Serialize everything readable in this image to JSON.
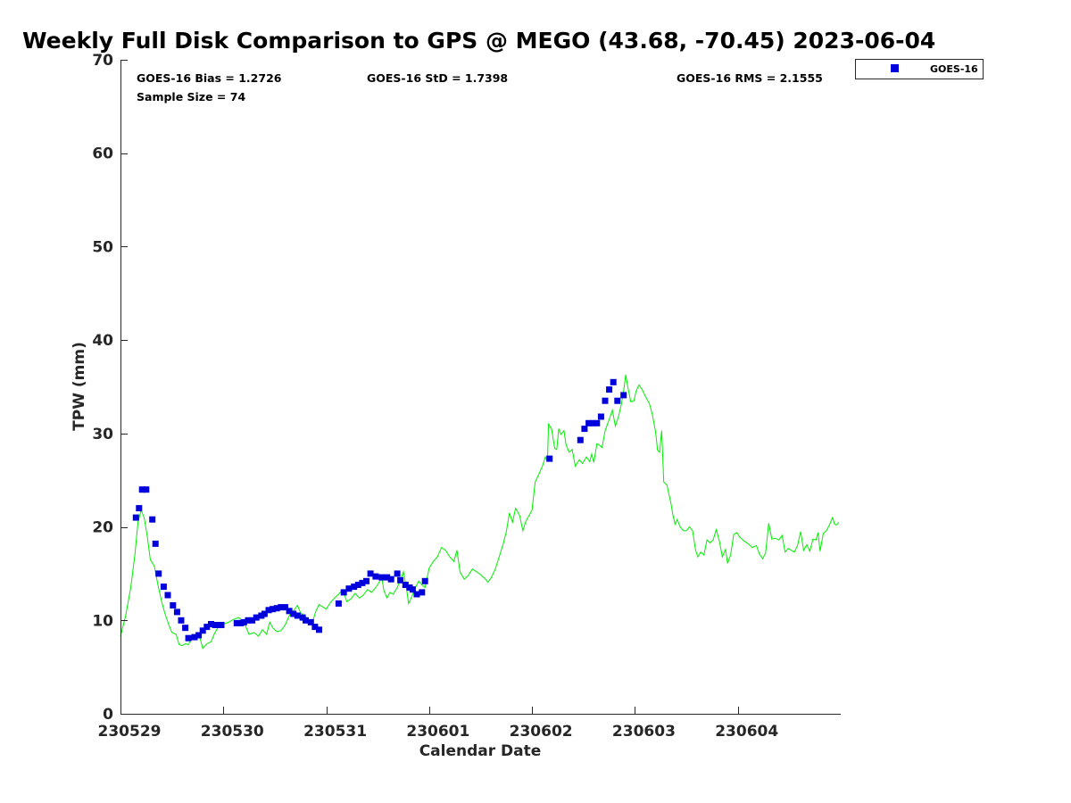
{
  "chart_data": {
    "type": "scatter",
    "title": "Weekly Full Disk Comparison to GPS @ MEGO (43.68, -70.45) 2023-06-04",
    "xlabel": "Calendar Date",
    "ylabel": "TPW (mm)",
    "xlim": [
      0,
      7
    ],
    "ylim": [
      0,
      70
    ],
    "yticks": [
      0,
      10,
      20,
      30,
      40,
      50,
      60,
      70
    ],
    "xticks": [
      {
        "x": 0,
        "label": "230529"
      },
      {
        "x": 1,
        "label": "230530"
      },
      {
        "x": 2,
        "label": "230531"
      },
      {
        "x": 3,
        "label": "230601"
      },
      {
        "x": 4,
        "label": "230602"
      },
      {
        "x": 5,
        "label": "230603"
      },
      {
        "x": 6,
        "label": "230604"
      }
    ],
    "x_units": "days since 230529 00Z",
    "grid": false,
    "legend_position": "top-right, outside plot",
    "stats": {
      "bias": "GOES-16 Bias = 1.2726",
      "std": "GOES-16 StD = 1.7398",
      "rms": "GOES-16 RMS = 2.1555",
      "sample_size": "Sample Size = 74"
    },
    "series": [
      {
        "name": "GOES-16",
        "style": "square-markers",
        "color": "#0000dd",
        "points": [
          [
            0.15,
            21.0
          ],
          [
            0.18,
            22.0
          ],
          [
            0.21,
            24.0
          ],
          [
            0.25,
            24.0
          ],
          [
            0.31,
            20.8
          ],
          [
            0.34,
            18.2
          ],
          [
            0.37,
            15.0
          ],
          [
            0.42,
            13.6
          ],
          [
            0.46,
            12.7
          ],
          [
            0.51,
            11.6
          ],
          [
            0.55,
            10.9
          ],
          [
            0.59,
            10.0
          ],
          [
            0.63,
            9.2
          ],
          [
            0.66,
            8.1
          ],
          [
            0.72,
            8.2
          ],
          [
            0.76,
            8.4
          ],
          [
            0.8,
            8.9
          ],
          [
            0.84,
            9.3
          ],
          [
            0.88,
            9.6
          ],
          [
            0.92,
            9.5
          ],
          [
            0.98,
            9.5
          ],
          [
            1.13,
            9.7
          ],
          [
            1.17,
            9.7
          ],
          [
            1.2,
            9.8
          ],
          [
            1.24,
            10.0
          ],
          [
            1.28,
            10.0
          ],
          [
            1.32,
            10.3
          ],
          [
            1.37,
            10.5
          ],
          [
            1.4,
            10.7
          ],
          [
            1.44,
            11.1
          ],
          [
            1.48,
            11.2
          ],
          [
            1.52,
            11.3
          ],
          [
            1.56,
            11.4
          ],
          [
            1.6,
            11.4
          ],
          [
            1.64,
            11.0
          ],
          [
            1.68,
            10.7
          ],
          [
            1.72,
            10.5
          ],
          [
            1.77,
            10.3
          ],
          [
            1.8,
            10.0
          ],
          [
            1.85,
            9.8
          ],
          [
            1.89,
            9.3
          ],
          [
            1.93,
            9.0
          ],
          [
            2.12,
            11.8
          ],
          [
            2.17,
            13.0
          ],
          [
            2.22,
            13.4
          ],
          [
            2.27,
            13.6
          ],
          [
            2.31,
            13.8
          ],
          [
            2.35,
            14.0
          ],
          [
            2.39,
            14.2
          ],
          [
            2.43,
            15.0
          ],
          [
            2.48,
            14.7
          ],
          [
            2.54,
            14.6
          ],
          [
            2.59,
            14.6
          ],
          [
            2.63,
            14.4
          ],
          [
            2.69,
            15.0
          ],
          [
            2.72,
            14.3
          ],
          [
            2.77,
            13.8
          ],
          [
            2.81,
            13.5
          ],
          [
            2.84,
            13.3
          ],
          [
            2.88,
            12.8
          ],
          [
            2.93,
            13.0
          ],
          [
            2.96,
            14.2
          ],
          [
            4.17,
            27.3
          ],
          [
            4.47,
            29.3
          ],
          [
            4.51,
            30.5
          ],
          [
            4.55,
            31.1
          ],
          [
            4.59,
            31.1
          ],
          [
            4.63,
            31.1
          ],
          [
            4.67,
            31.8
          ],
          [
            4.71,
            33.5
          ],
          [
            4.75,
            34.7
          ],
          [
            4.79,
            35.5
          ],
          [
            4.83,
            33.5
          ],
          [
            4.89,
            34.1
          ]
        ]
      },
      {
        "name": "",
        "style": "line",
        "color": "#00ee00",
        "points": [
          [
            0.0,
            8.3
          ],
          [
            0.05,
            10.5
          ],
          [
            0.1,
            13.5
          ],
          [
            0.14,
            17.0
          ],
          [
            0.17,
            20.5
          ],
          [
            0.2,
            21.8
          ],
          [
            0.23,
            21.0
          ],
          [
            0.26,
            19.0
          ],
          [
            0.29,
            16.5
          ],
          [
            0.33,
            15.8
          ],
          [
            0.36,
            14.0
          ],
          [
            0.4,
            12.0
          ],
          [
            0.43,
            10.8
          ],
          [
            0.47,
            9.5
          ],
          [
            0.5,
            8.7
          ],
          [
            0.54,
            8.5
          ],
          [
            0.57,
            7.4
          ],
          [
            0.6,
            7.3
          ],
          [
            0.63,
            7.5
          ],
          [
            0.66,
            7.4
          ],
          [
            0.7,
            8.2
          ],
          [
            0.74,
            8.5
          ],
          [
            0.77,
            8.2
          ],
          [
            0.8,
            7.0
          ],
          [
            0.84,
            7.5
          ],
          [
            0.88,
            7.7
          ],
          [
            0.91,
            8.5
          ],
          [
            0.95,
            9.3
          ],
          [
            1.0,
            9.6
          ],
          [
            1.05,
            9.8
          ],
          [
            1.1,
            10.1
          ],
          [
            1.15,
            10.3
          ],
          [
            1.2,
            9.8
          ],
          [
            1.25,
            8.5
          ],
          [
            1.3,
            8.7
          ],
          [
            1.34,
            8.3
          ],
          [
            1.38,
            9.0
          ],
          [
            1.42,
            8.5
          ],
          [
            1.45,
            9.8
          ],
          [
            1.48,
            9.2
          ],
          [
            1.52,
            8.8
          ],
          [
            1.56,
            8.9
          ],
          [
            1.6,
            9.5
          ],
          [
            1.64,
            10.5
          ],
          [
            1.68,
            11.0
          ],
          [
            1.72,
            11.6
          ],
          [
            1.75,
            10.8
          ],
          [
            1.79,
            10.5
          ],
          [
            1.83,
            10.0
          ],
          [
            1.86,
            9.6
          ],
          [
            1.9,
            11.0
          ],
          [
            1.93,
            11.7
          ],
          [
            1.97,
            11.4
          ],
          [
            2.0,
            11.2
          ],
          [
            2.04,
            11.9
          ],
          [
            2.08,
            12.4
          ],
          [
            2.12,
            12.8
          ],
          [
            2.16,
            13.3
          ],
          [
            2.2,
            12.0
          ],
          [
            2.24,
            12.3
          ],
          [
            2.28,
            12.9
          ],
          [
            2.32,
            12.4
          ],
          [
            2.36,
            12.7
          ],
          [
            2.4,
            13.3
          ],
          [
            2.44,
            13.0
          ],
          [
            2.48,
            13.5
          ],
          [
            2.51,
            14.0
          ],
          [
            2.54,
            14.6
          ],
          [
            2.56,
            13.2
          ],
          [
            2.59,
            12.4
          ],
          [
            2.62,
            13.0
          ],
          [
            2.65,
            12.8
          ],
          [
            2.69,
            13.5
          ],
          [
            2.72,
            14.3
          ],
          [
            2.75,
            15.2
          ],
          [
            2.78,
            13.4
          ],
          [
            2.8,
            11.8
          ],
          [
            2.83,
            12.5
          ],
          [
            2.87,
            13.6
          ],
          [
            2.9,
            14.2
          ],
          [
            2.93,
            13.8
          ],
          [
            2.96,
            13.5
          ],
          [
            3.0,
            15.6
          ],
          [
            3.04,
            16.3
          ],
          [
            3.08,
            16.8
          ],
          [
            3.12,
            17.8
          ],
          [
            3.16,
            17.5
          ],
          [
            3.2,
            16.8
          ],
          [
            3.24,
            16.3
          ],
          [
            3.27,
            17.5
          ],
          [
            3.3,
            15.2
          ],
          [
            3.34,
            14.4
          ],
          [
            3.38,
            14.8
          ],
          [
            3.42,
            15.5
          ],
          [
            3.46,
            15.2
          ],
          [
            3.5,
            14.9
          ],
          [
            3.54,
            14.5
          ],
          [
            3.57,
            14.1
          ],
          [
            3.6,
            14.5
          ],
          [
            3.64,
            15.4
          ],
          [
            3.68,
            16.8
          ],
          [
            3.72,
            18.2
          ],
          [
            3.75,
            19.5
          ],
          [
            3.78,
            21.5
          ],
          [
            3.81,
            20.5
          ],
          [
            3.84,
            22.0
          ],
          [
            3.88,
            21.2
          ],
          [
            3.91,
            19.6
          ],
          [
            3.94,
            20.6
          ],
          [
            3.97,
            21.2
          ],
          [
            4.0,
            21.8
          ],
          [
            4.03,
            24.8
          ],
          [
            4.06,
            25.5
          ],
          [
            4.1,
            26.5
          ],
          [
            4.13,
            27.5
          ],
          [
            4.15,
            27.0
          ],
          [
            4.16,
            31.0
          ],
          [
            4.19,
            30.5
          ],
          [
            4.22,
            28.4
          ],
          [
            4.24,
            28.3
          ],
          [
            4.26,
            30.5
          ],
          [
            4.28,
            29.9
          ],
          [
            4.31,
            30.3
          ],
          [
            4.33,
            28.8
          ],
          [
            4.36,
            28.0
          ],
          [
            4.39,
            28.3
          ],
          [
            4.42,
            26.5
          ],
          [
            4.46,
            27.2
          ],
          [
            4.49,
            26.8
          ],
          [
            4.53,
            27.5
          ],
          [
            4.56,
            27.0
          ],
          [
            4.58,
            27.8
          ],
          [
            4.6,
            26.9
          ],
          [
            4.63,
            28.9
          ],
          [
            4.65,
            28.8
          ],
          [
            4.68,
            28.5
          ],
          [
            4.71,
            30.3
          ],
          [
            4.75,
            31.5
          ],
          [
            4.78,
            32.5
          ],
          [
            4.81,
            30.8
          ],
          [
            4.84,
            31.8
          ],
          [
            4.87,
            33.2
          ],
          [
            4.89,
            34.5
          ],
          [
            4.91,
            36.3
          ],
          [
            4.93,
            35.0
          ],
          [
            4.96,
            33.4
          ],
          [
            4.99,
            33.5
          ],
          [
            5.01,
            34.5
          ],
          [
            5.04,
            35.2
          ],
          [
            5.07,
            34.7
          ],
          [
            5.1,
            34.0
          ],
          [
            5.14,
            33.2
          ],
          [
            5.17,
            32.0
          ],
          [
            5.2,
            30.2
          ],
          [
            5.22,
            28.2
          ],
          [
            5.24,
            28.0
          ],
          [
            5.26,
            30.3
          ],
          [
            5.28,
            24.8
          ],
          [
            5.31,
            24.5
          ],
          [
            5.33,
            23.5
          ],
          [
            5.35,
            22.5
          ],
          [
            5.37,
            21.2
          ],
          [
            5.39,
            20.3
          ],
          [
            5.41,
            20.8
          ],
          [
            5.44,
            20.0
          ],
          [
            5.47,
            19.6
          ],
          [
            5.5,
            19.6
          ],
          [
            5.53,
            20.0
          ],
          [
            5.56,
            19.6
          ],
          [
            5.59,
            17.5
          ],
          [
            5.61,
            16.8
          ],
          [
            5.64,
            17.3
          ],
          [
            5.67,
            17.0
          ],
          [
            5.7,
            18.6
          ],
          [
            5.73,
            18.3
          ],
          [
            5.76,
            18.6
          ],
          [
            5.79,
            19.7
          ],
          [
            5.82,
            18.5
          ],
          [
            5.85,
            16.8
          ],
          [
            5.88,
            17.6
          ],
          [
            5.9,
            16.1
          ],
          [
            5.93,
            17.0
          ],
          [
            5.96,
            19.2
          ],
          [
            5.99,
            19.4
          ],
          [
            6.02,
            18.9
          ],
          [
            6.06,
            18.5
          ],
          [
            6.1,
            18.2
          ],
          [
            6.14,
            17.8
          ],
          [
            6.18,
            18.0
          ],
          [
            6.21,
            17.1
          ],
          [
            6.24,
            16.6
          ],
          [
            6.27,
            17.2
          ],
          [
            6.3,
            20.4
          ],
          [
            6.33,
            18.7
          ],
          [
            6.36,
            18.8
          ],
          [
            6.4,
            18.6
          ],
          [
            6.43,
            19.1
          ],
          [
            6.46,
            17.3
          ],
          [
            6.49,
            17.7
          ],
          [
            6.52,
            17.5
          ],
          [
            6.55,
            17.3
          ],
          [
            6.58,
            18.0
          ],
          [
            6.61,
            19.5
          ],
          [
            6.64,
            17.5
          ],
          [
            6.67,
            18.1
          ],
          [
            6.7,
            17.4
          ],
          [
            6.73,
            18.7
          ],
          [
            6.76,
            18.6
          ],
          [
            6.78,
            19.4
          ],
          [
            6.8,
            17.4
          ],
          [
            6.83,
            19.3
          ],
          [
            6.86,
            19.6
          ],
          [
            6.89,
            20.2
          ],
          [
            6.92,
            21.0
          ],
          [
            6.94,
            20.3
          ],
          [
            6.96,
            20.2
          ],
          [
            6.98,
            20.5
          ]
        ]
      }
    ]
  }
}
